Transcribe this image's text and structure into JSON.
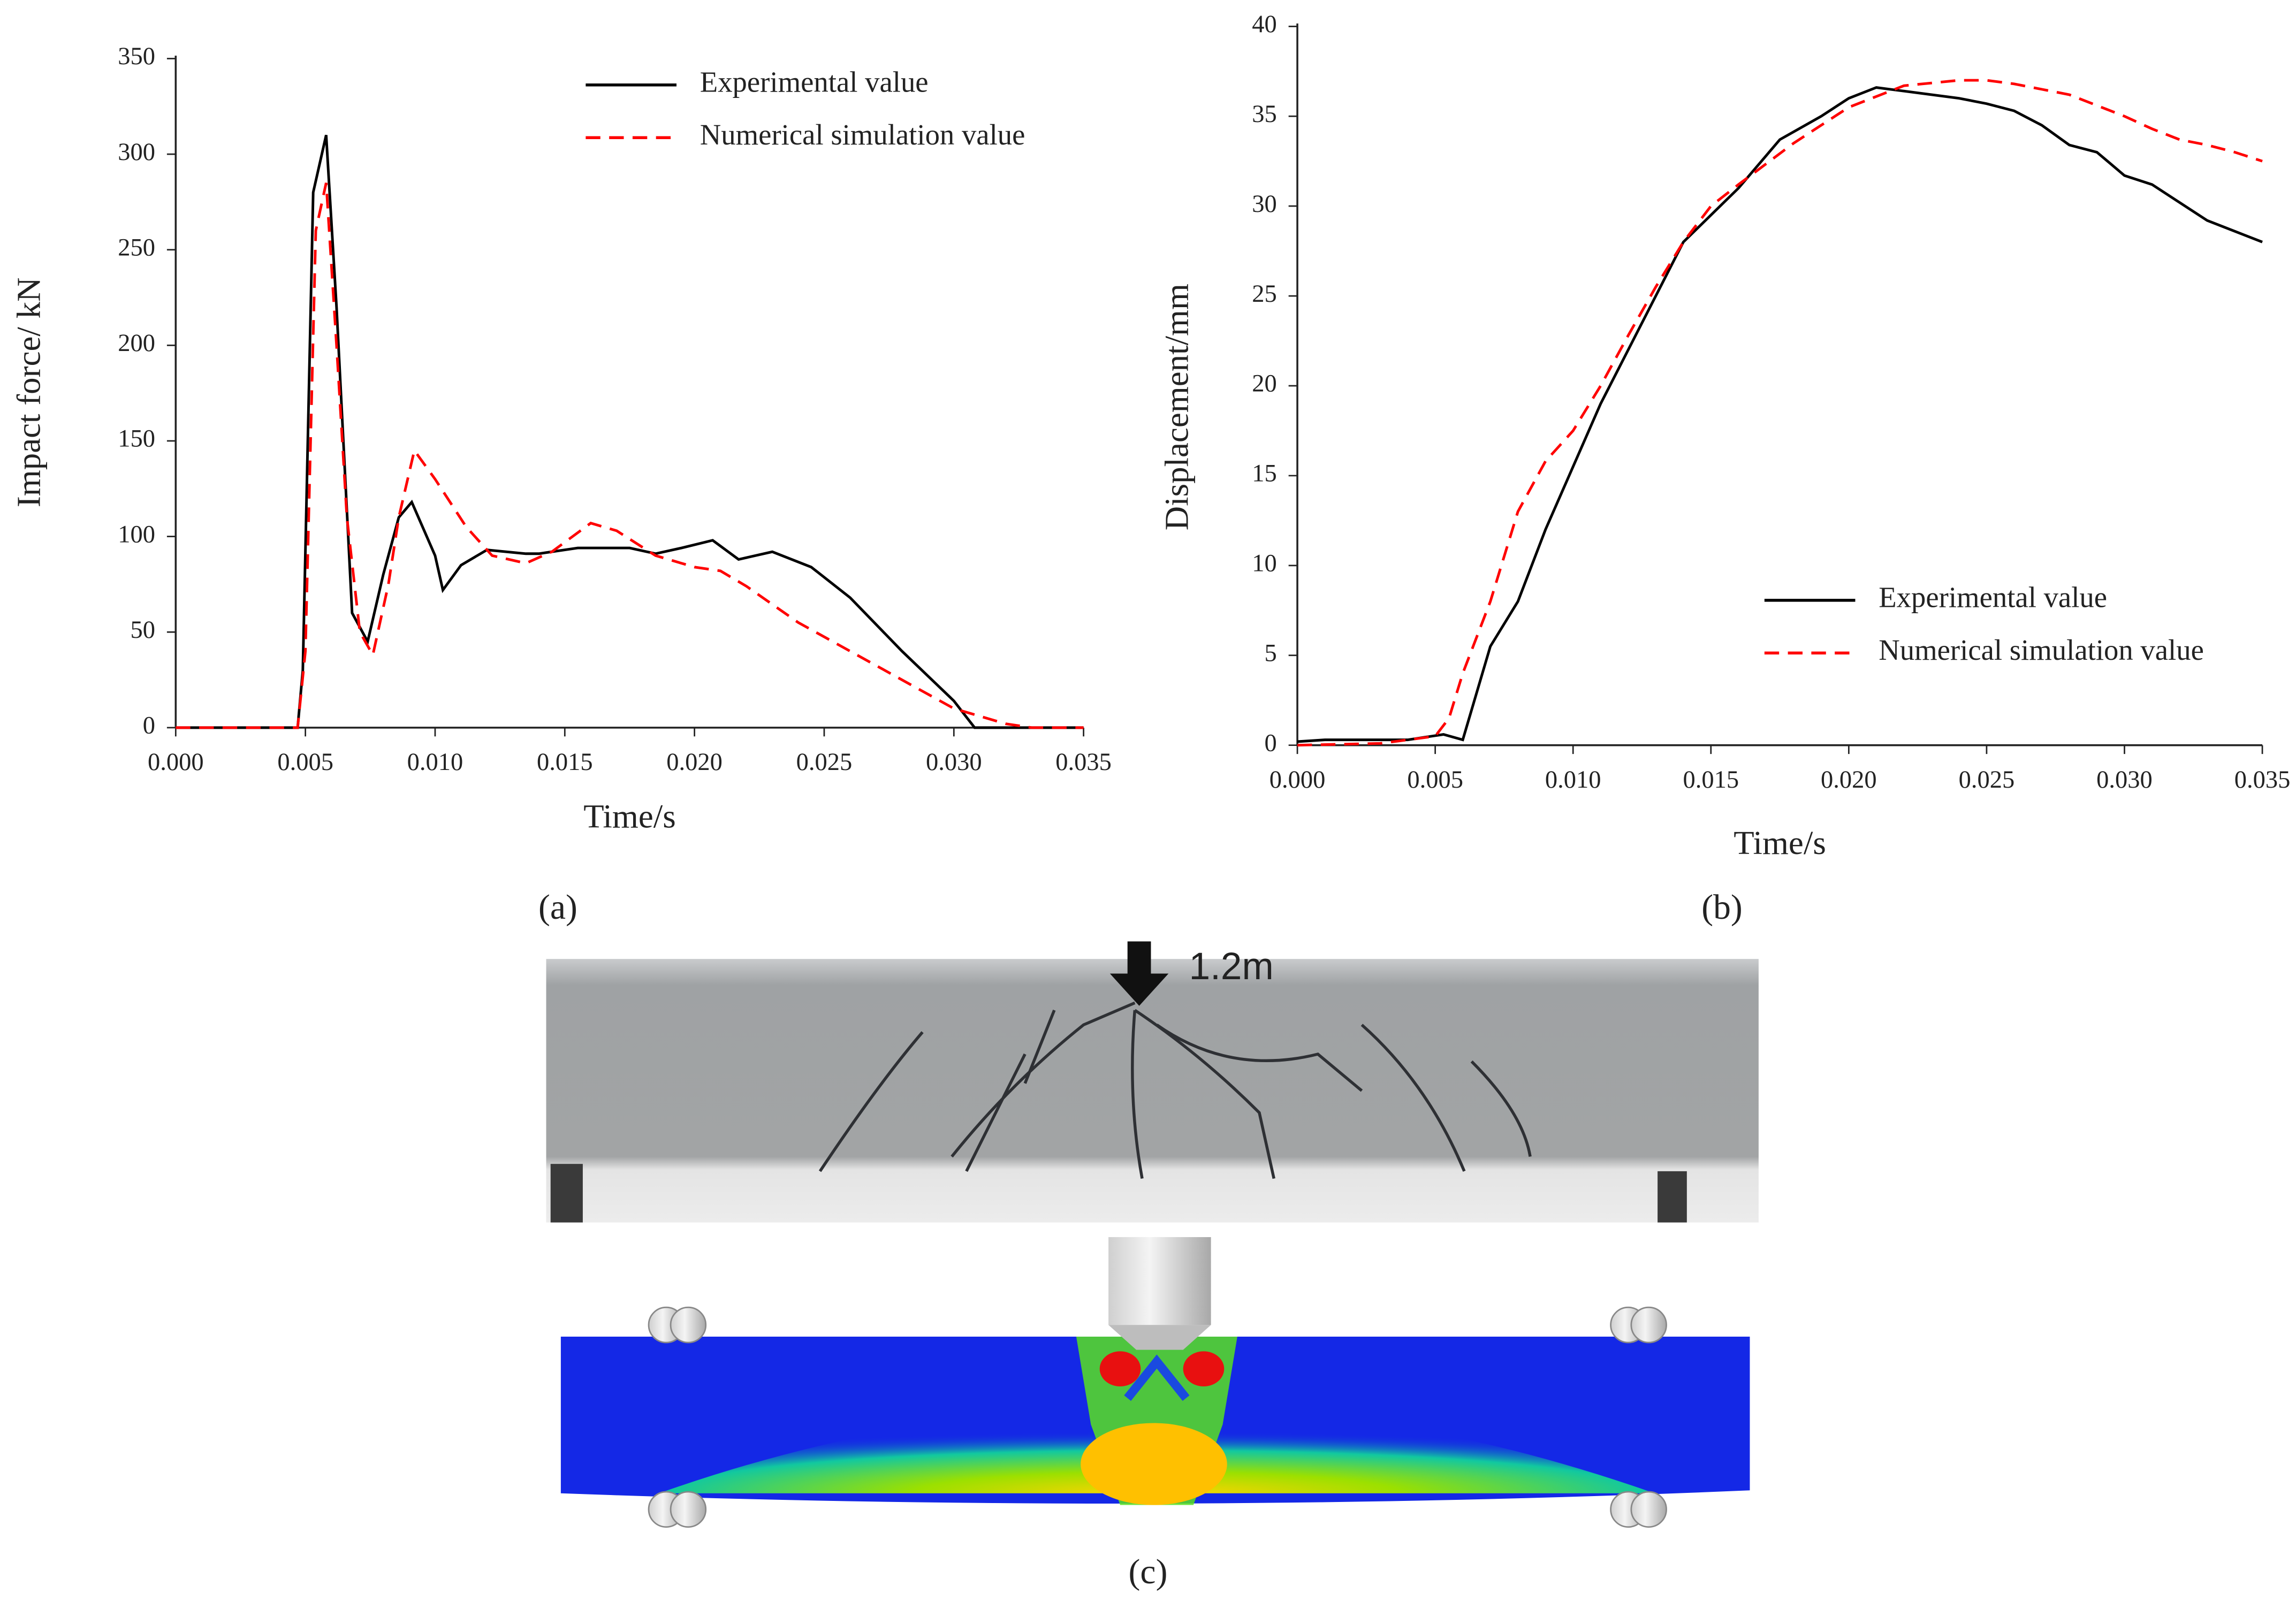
{
  "chart_data": [
    {
      "type": "line",
      "panel_label": "(a)",
      "x_label": "Time/s",
      "y_label": "Impact force/ kN",
      "xlim": [
        0,
        0.035
      ],
      "ylim": [
        0,
        350
      ],
      "xticks": [
        {
          "value": 0,
          "label": "0.000"
        },
        {
          "value": 0.005,
          "label": "0.005"
        },
        {
          "value": 0.01,
          "label": "0.010"
        },
        {
          "value": 0.015,
          "label": "0.015"
        },
        {
          "value": 0.02,
          "label": "0.020"
        },
        {
          "value": 0.025,
          "label": "0.025"
        },
        {
          "value": 0.03,
          "label": "0.030"
        },
        {
          "value": 0.035,
          "label": "0.035"
        }
      ],
      "yticks": [
        0,
        50,
        100,
        150,
        200,
        250,
        300,
        350
      ],
      "grid": false,
      "legend": "upper right",
      "series": [
        {
          "name": "Experimental value",
          "color": "#000000",
          "style": "solid",
          "x": [
            0,
            0.0047,
            0.0049,
            0.0053,
            0.0058,
            0.0062,
            0.0068,
            0.0074,
            0.008,
            0.0086,
            0.0091,
            0.01,
            0.0103,
            0.011,
            0.012,
            0.0135,
            0.014,
            0.0155,
            0.0175,
            0.0185,
            0.0195,
            0.0207,
            0.0217,
            0.023,
            0.0245,
            0.026,
            0.028,
            0.03,
            0.0308,
            0.035
          ],
          "values": [
            0,
            0,
            30,
            280,
            310,
            220,
            60,
            45,
            80,
            110,
            118,
            90,
            72,
            85,
            93,
            91,
            91,
            94,
            94,
            91,
            94,
            98,
            88,
            92,
            84,
            68,
            40,
            14,
            0,
            0
          ]
        },
        {
          "name": "Numerical simulation value",
          "color": "#ff0000",
          "style": "dashed",
          "x": [
            0,
            0.0047,
            0.005,
            0.0054,
            0.0058,
            0.0062,
            0.0066,
            0.0071,
            0.0076,
            0.0082,
            0.0086,
            0.0092,
            0.01,
            0.0112,
            0.0122,
            0.0135,
            0.0145,
            0.016,
            0.017,
            0.0185,
            0.02,
            0.021,
            0.022,
            0.024,
            0.026,
            0.028,
            0.03,
            0.032,
            0.033,
            0.035
          ],
          "values": [
            0,
            0,
            40,
            260,
            285,
            200,
            110,
            50,
            38,
            75,
            110,
            145,
            130,
            105,
            90,
            86,
            92,
            107,
            103,
            90,
            84,
            82,
            74,
            55,
            40,
            25,
            10,
            2,
            0,
            0
          ]
        }
      ]
    },
    {
      "type": "line",
      "panel_label": "(b)",
      "x_label": "Time/s",
      "y_label": "Displacement/mm",
      "xlim": [
        0,
        0.035
      ],
      "ylim": [
        0,
        40
      ],
      "xticks": [
        {
          "value": 0,
          "label": "0.000"
        },
        {
          "value": 0.005,
          "label": "0.005"
        },
        {
          "value": 0.01,
          "label": "0.010"
        },
        {
          "value": 0.015,
          "label": "0.015"
        },
        {
          "value": 0.02,
          "label": "0.020"
        },
        {
          "value": 0.025,
          "label": "0.025"
        },
        {
          "value": 0.03,
          "label": "0.030"
        },
        {
          "value": 0.035,
          "label": "0.035"
        }
      ],
      "yticks": [
        0,
        5,
        10,
        15,
        20,
        25,
        30,
        35,
        40
      ],
      "grid": false,
      "legend": "lower right",
      "series": [
        {
          "name": "Experimental value",
          "color": "#000000",
          "style": "solid",
          "x": [
            0,
            0.001,
            0.004,
            0.0053,
            0.006,
            0.007,
            0.008,
            0.009,
            0.01,
            0.011,
            0.012,
            0.013,
            0.014,
            0.016,
            0.0175,
            0.019,
            0.02,
            0.021,
            0.022,
            0.023,
            0.024,
            0.025,
            0.026,
            0.027,
            0.028,
            0.029,
            0.03,
            0.031,
            0.032,
            0.033,
            0.034,
            0.035
          ],
          "values": [
            0.2,
            0.3,
            0.3,
            0.6,
            0.3,
            5.5,
            8,
            12,
            15.5,
            19,
            22,
            25,
            28,
            31,
            33.7,
            35,
            36,
            36.6,
            36.4,
            36.2,
            36,
            35.7,
            35.3,
            34.5,
            33.4,
            33,
            31.7,
            31.2,
            30.2,
            29.2,
            28.6,
            28
          ]
        },
        {
          "name": "Numerical simulation value",
          "color": "#ff0000",
          "style": "dashed",
          "x": [
            0,
            0.003,
            0.005,
            0.0055,
            0.006,
            0.007,
            0.008,
            0.009,
            0.01,
            0.011,
            0.012,
            0.013,
            0.014,
            0.015,
            0.016,
            0.018,
            0.02,
            0.022,
            0.024,
            0.025,
            0.026,
            0.027,
            0.028,
            0.029,
            0.03,
            0.031,
            0.032,
            0.033,
            0.034,
            0.035
          ],
          "values": [
            0,
            0.1,
            0.5,
            1.5,
            4,
            8,
            13,
            15.8,
            17.5,
            20,
            22.8,
            25.5,
            28,
            30,
            31.2,
            33.5,
            35.5,
            36.7,
            37,
            37,
            36.8,
            36.5,
            36.2,
            35.6,
            35,
            34.3,
            33.7,
            33.4,
            33,
            32.5
          ]
        }
      ]
    }
  ],
  "figure_c": {
    "drop_height": "1.2m",
    "panel_label": "(c)"
  }
}
